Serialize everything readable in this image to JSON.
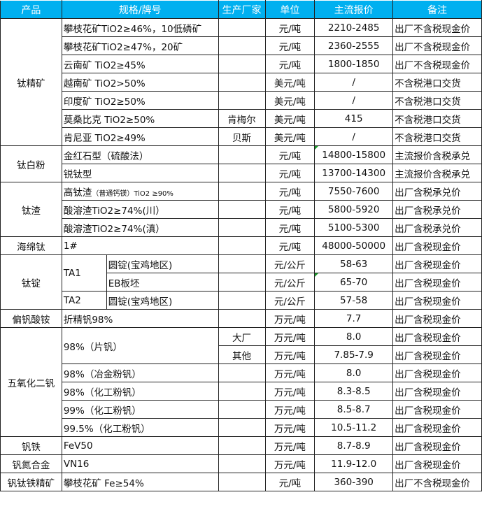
{
  "header": [
    "产品",
    "规格/牌号",
    "生产厂家",
    "单位",
    "主流报价",
    "备注"
  ],
  "groups": [
    {
      "product": "钛精矿",
      "rows": [
        {
          "spec": "攀枝花矿TiO2≥46%，10低磷矿",
          "maker": "",
          "unit": "元/吨",
          "price": "2210-2485",
          "note": "出厂不含税现金价"
        },
        {
          "spec": "攀枝花矿TiO2≥47%，20矿",
          "maker": "",
          "unit": "元/吨",
          "price": "2360-2555",
          "note": "出厂不含税现金价"
        },
        {
          "spec": "云南矿 TiO2≥45%",
          "maker": "",
          "unit": "元/吨",
          "price": "1800-1850",
          "note": "出厂不含税现金价"
        },
        {
          "spec": "越南矿 TiO2>50%",
          "maker": "",
          "unit": "美元/吨",
          "price": "/",
          "note": "不含税港口交货"
        },
        {
          "spec": "印度矿 TiO2≥50%",
          "maker": "",
          "unit": "美元/吨",
          "price": "/",
          "note": "不含税港口交货"
        },
        {
          "spec": "莫桑比克 TiO2≥50%",
          "maker": "肯梅尔",
          "unit": "美元/吨",
          "price": "415",
          "note": "不含税港口交货"
        },
        {
          "spec": "肯尼亚 TiO2≥49%",
          "maker": "贝斯",
          "unit": "美元/吨",
          "price": "/",
          "note": "不含税港口交货"
        }
      ]
    },
    {
      "product": "钛白粉",
      "rows": [
        {
          "spec": "金红石型（硫酸法）",
          "maker": "",
          "unit": "元/吨",
          "price": "14800-15800",
          "note": "主流报价含税承兑",
          "flag": true
        },
        {
          "spec": "锐钛型",
          "maker": "",
          "unit": "元/吨",
          "price": "13700-14300",
          "note": "主流报价含税承兑"
        }
      ]
    },
    {
      "product": "钛渣",
      "rows": [
        {
          "spec": "高钛渣",
          "spec_small": "（普通钙镁）TiO2 ≥90%",
          "maker": "",
          "unit": "元/吨",
          "price": "7550-7600",
          "note": "出厂含税承兑价"
        },
        {
          "spec": "酸溶渣TiO2≥74%(川）",
          "maker": "",
          "unit": "元/吨",
          "price": "5800-5920",
          "note": "出厂含税承兑价"
        },
        {
          "spec": "酸溶渣TiO2≥74%(滇）",
          "maker": "",
          "unit": "元/吨",
          "price": "5100-5300",
          "note": "出厂含税承兑价"
        }
      ]
    },
    {
      "product": "海绵钛",
      "rows": [
        {
          "spec": "1#",
          "maker": "",
          "unit": "元/吨",
          "price": "48000-50000",
          "note": "出厂含税现金价"
        }
      ]
    },
    {
      "product": "钛锭",
      "sub": true,
      "rows": [
        {
          "grade": "TA1",
          "spec": "圆锭(宝鸡地区)",
          "unit": "元/公斤",
          "price": "58-63",
          "note": "出厂含税现金价"
        },
        {
          "grade": "TA1",
          "spec": "EB板坯",
          "unit": "元/公斤",
          "price": "65-70",
          "note": "出厂含税现金价",
          "flag": true
        },
        {
          "grade": "TA2",
          "spec": "圆锭(宝鸡地区)",
          "unit": "元/公斤",
          "price": "57-58",
          "note": "出厂含税现金价"
        }
      ]
    },
    {
      "product": "偏钒酸铵",
      "rows": [
        {
          "spec": "折精钒98%",
          "maker": "",
          "unit": "万元/吨",
          "price": "7.7",
          "note": "出厂含税现金价"
        }
      ]
    },
    {
      "product": "五氧化二钒",
      "rows": [
        {
          "spec": "98%（片钒）",
          "maker": "大厂",
          "unit": "万元/吨",
          "price": "8.0",
          "note": "出厂含税现金价"
        },
        {
          "spec": "98%（片钒）",
          "maker": "其他",
          "unit": "万元/吨",
          "price": "7.85-7.9",
          "note": "出厂含税现金价"
        },
        {
          "spec": "98%（冶金粉钒）",
          "maker": "",
          "unit": "万元/吨",
          "price": "8.0",
          "note": "出厂含税现金价"
        },
        {
          "spec": "98%（化工粉钒）",
          "maker": "",
          "unit": "万元/吨",
          "price": "8.3-8.5",
          "note": "出厂含税现金价"
        },
        {
          "spec": "99%（化工粉钒）",
          "maker": "",
          "unit": "万元/吨",
          "price": "8.5-8.7",
          "note": "出厂含税现金价"
        },
        {
          "spec": "99.5%（化工粉钒）",
          "maker": "",
          "unit": "万元/吨",
          "price": "10.5-11.2",
          "note": "出厂含税现金价"
        }
      ]
    },
    {
      "product": "钒铁",
      "rows": [
        {
          "spec": "FeV50",
          "maker": "",
          "unit": "万元/吨",
          "price": "8.7-8.9",
          "note": "出厂含税现金价"
        }
      ]
    },
    {
      "product": "钒氮合金",
      "rows": [
        {
          "spec": "VN16",
          "maker": "",
          "unit": "万元/吨",
          "price": "11.9-12.0",
          "note": "出厂含税现金价"
        }
      ]
    },
    {
      "product": "钒钛铁精矿",
      "rows": [
        {
          "spec": "攀枝花矿 Fe≥54%",
          "maker": "",
          "unit": "元/吨",
          "price": "360-390",
          "note": "出厂不含税现金价"
        }
      ]
    }
  ]
}
